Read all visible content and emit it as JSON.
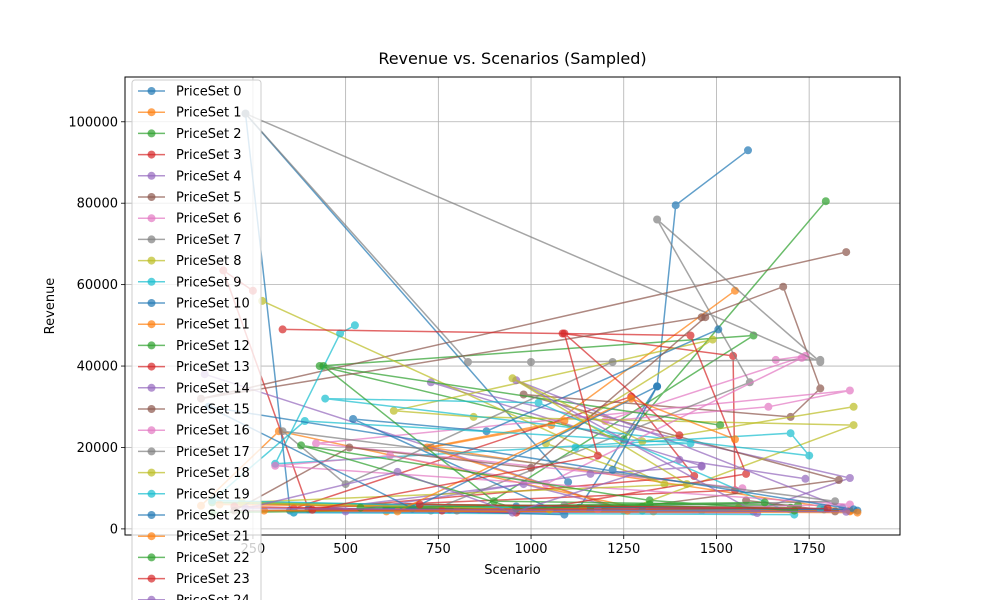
{
  "chart_data": {
    "type": "line",
    "title": "Revenue vs. Scenarios (Sampled)",
    "xlabel": "Scenario",
    "ylabel": "Revenue",
    "xlim": [
      -95,
      1995
    ],
    "ylim": [
      -1500,
      111000
    ],
    "x_ticks": [
      250,
      500,
      750,
      1000,
      1250,
      1500,
      1750
    ],
    "x_tick_labels": [
      "250",
      "500",
      "750",
      "1000",
      "1250",
      "1500",
      "1750"
    ],
    "y_ticks": [
      0,
      20000,
      40000,
      60000,
      80000,
      100000
    ],
    "y_tick_labels": [
      "0",
      "20000",
      "40000",
      "60000",
      "80000",
      "100000"
    ],
    "grid": true,
    "legend_placement": "upper-left",
    "marker": "circle",
    "line_alpha": 0.7,
    "colors": [
      "#1f77b4",
      "#ff7f0e",
      "#2ca02c",
      "#d62728",
      "#9467bd",
      "#8c564b",
      "#e377c2",
      "#7f7f7f",
      "#bcbd22",
      "#17becf"
    ],
    "series": [
      {
        "name": "PriceSet 0",
        "points": [
          [
            1585,
            93000
          ],
          [
            1390,
            79500
          ],
          [
            1340,
            35000
          ],
          [
            1130,
            5200
          ],
          [
            610,
            5000
          ],
          [
            1880,
            4500
          ],
          [
            350,
            4500
          ],
          [
            230,
            102000
          ],
          [
            1100,
            11500
          ]
        ]
      },
      {
        "name": "PriceSet 1",
        "points": [
          [
            1550,
            58500
          ],
          [
            1055,
            25500
          ],
          [
            730,
            20000
          ],
          [
            1860,
            4500
          ],
          [
            610,
            4300
          ],
          [
            1330,
            4300
          ],
          [
            320,
            24000
          ],
          [
            110,
            5700
          ]
        ]
      },
      {
        "name": "PriceSet 2",
        "points": [
          [
            1795,
            80500
          ],
          [
            1250,
            22000
          ],
          [
            430,
            40000
          ],
          [
            1600,
            47500
          ],
          [
            860,
            4800
          ],
          [
            140,
            6500
          ],
          [
            1700,
            5200
          ]
        ]
      },
      {
        "name": "PriceSet 3",
        "points": [
          [
            1085,
            48000
          ],
          [
            1545,
            42500
          ],
          [
            1550,
            9500
          ],
          [
            360,
            5000
          ],
          [
            1270,
            32500
          ],
          [
            1440,
            13000
          ],
          [
            400,
            4800
          ],
          [
            170,
            63500
          ],
          [
            250,
            58500
          ]
        ]
      },
      {
        "name": "PriceSet 4",
        "points": [
          [
            1460,
            15500
          ],
          [
            730,
            36000
          ],
          [
            1860,
            12500
          ],
          [
            1600,
            4200
          ],
          [
            360,
            4000
          ],
          [
            980,
            11000
          ],
          [
            1250,
            4800
          ],
          [
            120,
            38000
          ]
        ]
      },
      {
        "name": "PriceSet 5",
        "points": [
          [
            1850,
            68000
          ],
          [
            110,
            32000
          ],
          [
            1460,
            52000
          ],
          [
            1680,
            59500
          ],
          [
            1780,
            34500
          ],
          [
            1700,
            27500
          ],
          [
            980,
            33000
          ],
          [
            1830,
            12000
          ],
          [
            1250,
            5000
          ],
          [
            780,
            4800
          ]
        ]
      },
      {
        "name": "PriceSet 6",
        "points": [
          [
            1660,
            41500
          ],
          [
            1740,
            42500
          ],
          [
            1200,
            26500
          ],
          [
            1640,
            30000
          ],
          [
            1860,
            34000
          ],
          [
            420,
            21000
          ],
          [
            1570,
            10000
          ]
        ]
      },
      {
        "name": "PriceSet 7",
        "points": [
          [
            1780,
            41500
          ],
          [
            1000,
            41000
          ],
          [
            830,
            41000
          ],
          [
            230,
            102000
          ],
          [
            1780,
            41000
          ],
          [
            1340,
            76000
          ],
          [
            1590,
            36000
          ],
          [
            730,
            4500
          ],
          [
            1300,
            5500
          ]
        ]
      },
      {
        "name": "PriceSet 8",
        "points": [
          [
            275,
            56000
          ],
          [
            1360,
            11000
          ],
          [
            1040,
            21000
          ],
          [
            1490,
            46500
          ],
          [
            630,
            29000
          ],
          [
            845,
            27500
          ],
          [
            1870,
            25500
          ],
          [
            1250,
            4500
          ]
        ]
      },
      {
        "name": "PriceSet 9",
        "points": [
          [
            525,
            50000
          ],
          [
            485,
            48000
          ],
          [
            310,
            16000
          ],
          [
            1700,
            23500
          ],
          [
            1750,
            18000
          ],
          [
            445,
            32000
          ],
          [
            1020,
            31000
          ],
          [
            1710,
            3500
          ],
          [
            360,
            4000
          ],
          [
            1460,
            4500
          ]
        ]
      },
      {
        "name": "PriceSet 10",
        "points": [
          [
            1505,
            49000
          ],
          [
            880,
            24000
          ],
          [
            520,
            27000
          ],
          [
            1090,
            3500
          ],
          [
            400,
            5000
          ],
          [
            1790,
            4800
          ]
        ]
      },
      {
        "name": "PriceSet 11",
        "points": [
          [
            1090,
            26500
          ],
          [
            720,
            20000
          ],
          [
            1260,
            4500
          ],
          [
            1560,
            5200
          ],
          [
            160,
            6000
          ],
          [
            1860,
            4300
          ]
        ]
      },
      {
        "name": "PriceSet 12",
        "points": [
          [
            1510,
            25500
          ],
          [
            440,
            40000
          ],
          [
            900,
            6800
          ],
          [
            1720,
            5800
          ],
          [
            140,
            4000
          ],
          [
            1320,
            6000
          ]
        ]
      },
      {
        "name": "PriceSet 13",
        "points": [
          [
            330,
            49000
          ],
          [
            1430,
            47500
          ],
          [
            1580,
            13500
          ],
          [
            960,
            4000
          ],
          [
            200,
            5500
          ],
          [
            760,
            4500
          ]
        ]
      },
      {
        "name": "PriceSet 14",
        "points": [
          [
            1460,
            15300
          ],
          [
            1160,
            13500
          ],
          [
            500,
            4300
          ],
          [
            1610,
            3900
          ],
          [
            960,
            36500
          ],
          [
            1840,
            5200
          ]
        ]
      },
      {
        "name": "PriceSet 15",
        "points": [
          [
            1470,
            52000
          ],
          [
            1000,
            15000
          ],
          [
            510,
            20000
          ],
          [
            200,
            4500
          ],
          [
            1820,
            4300
          ],
          [
            1580,
            7000
          ]
        ]
      },
      {
        "name": "PriceSet 16",
        "points": [
          [
            1730,
            42000
          ],
          [
            1040,
            11000
          ],
          [
            620,
            18000
          ],
          [
            310,
            15500
          ],
          [
            1860,
            6000
          ],
          [
            1180,
            4800
          ]
        ]
      },
      {
        "name": "PriceSet 17",
        "points": [
          [
            1220,
            41000
          ],
          [
            500,
            11000
          ],
          [
            330,
            24000
          ],
          [
            1820,
            6800
          ],
          [
            800,
            4500
          ],
          [
            1090,
            5800
          ]
        ]
      },
      {
        "name": "PriceSet 18",
        "points": [
          [
            1870,
            30000
          ],
          [
            1300,
            21500
          ],
          [
            950,
            37000
          ],
          [
            1420,
            11000
          ],
          [
            220,
            6500
          ],
          [
            1050,
            4800
          ]
        ]
      },
      {
        "name": "PriceSet 19",
        "points": [
          [
            1120,
            20000
          ],
          [
            1430,
            21000
          ],
          [
            390,
            26500
          ],
          [
            140,
            7000
          ],
          [
            1300,
            4500
          ],
          [
            1780,
            5000
          ]
        ]
      },
      {
        "name": "PriceSet 20",
        "points": [
          [
            1220,
            14500
          ],
          [
            1340,
            35000
          ],
          [
            680,
            5000
          ],
          [
            130,
            30000
          ],
          [
            1870,
            4800
          ],
          [
            960,
            5500
          ]
        ]
      },
      {
        "name": "PriceSet 21",
        "points": [
          [
            1550,
            22000
          ],
          [
            1270,
            32000
          ],
          [
            640,
            4300
          ],
          [
            1140,
            5000
          ],
          [
            280,
            4500
          ],
          [
            1880,
            4000
          ]
        ]
      },
      {
        "name": "PriceSet 22",
        "points": [
          [
            1710,
            4500
          ],
          [
            1320,
            7000
          ],
          [
            380,
            20500
          ],
          [
            960,
            5000
          ],
          [
            1630,
            6500
          ],
          [
            540,
            5200
          ]
        ]
      },
      {
        "name": "PriceSet 23",
        "points": [
          [
            1400,
            23000
          ],
          [
            1090,
            48000
          ],
          [
            1180,
            18000
          ],
          [
            410,
            4700
          ],
          [
            1800,
            5000
          ],
          [
            700,
            6000
          ]
        ]
      },
      {
        "name": "PriceSet 24",
        "points": [
          [
            1740,
            12300
          ],
          [
            1400,
            17000
          ],
          [
            950,
            4000
          ],
          [
            640,
            14000
          ],
          [
            230,
            5000
          ],
          [
            1850,
            4200
          ]
        ]
      }
    ]
  }
}
